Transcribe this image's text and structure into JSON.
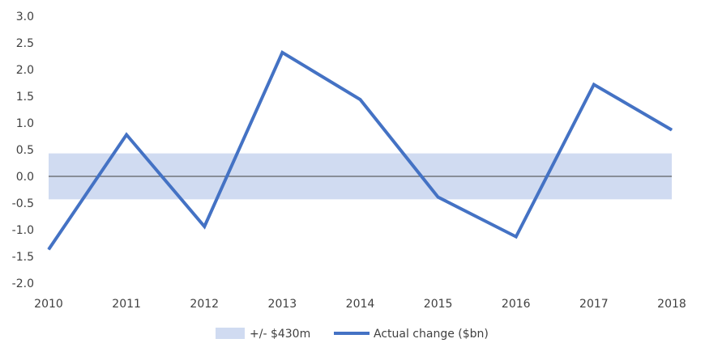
{
  "chart_data": {
    "type": "line",
    "x": [
      "2010",
      "2011",
      "2012",
      "2013",
      "2014",
      "2015",
      "2016",
      "2017",
      "2018"
    ],
    "series": [
      {
        "name": "Actual change ($bn)",
        "values": [
          -1.37,
          0.78,
          -0.94,
          2.32,
          1.44,
          -0.39,
          -1.13,
          1.72,
          0.87
        ],
        "color": "#4472C4"
      }
    ],
    "band": {
      "name": "+/- $430m",
      "lower": -0.43,
      "upper": 0.43,
      "color": "#D0DBF1"
    },
    "ylim": [
      -2.0,
      3.0
    ],
    "yticks": [
      "3.0",
      "2.5",
      "2.0",
      "1.5",
      "1.0",
      "0.5",
      "0.0",
      "-0.5",
      "-1.0",
      "-1.5",
      "-2.0"
    ],
    "title": "",
    "xlabel": "",
    "ylabel": "",
    "grid": false,
    "zero_line": true,
    "legend_position": "bottom"
  },
  "legend": {
    "band_label": "+/- $430m",
    "line_label": "Actual change ($bn)"
  }
}
